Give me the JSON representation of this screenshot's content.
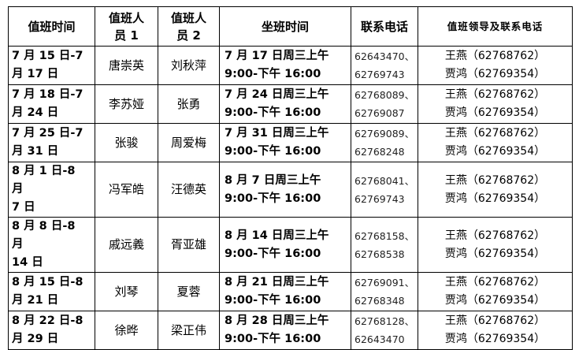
{
  "headers": [
    "值班时间",
    "值班人\n员 1",
    "值班人\n员 2",
    "坐班时间",
    "联系电话",
    "值班领导及联系电话"
  ],
  "rows": [
    {
      "period": "7 月 15 日-7\n月 17 日",
      "staff1": "唐崇英",
      "staff2": "刘秋萍",
      "office_time": "7 月 17 日周三上午\n9:00-下午 16:00",
      "phones": "62643470、\n62769743",
      "leaders": "王燕（62768762）\n贾鸿（62769354）"
    },
    {
      "period": "7 月 18 日-7\n月 24 日",
      "staff1": "李苏娅",
      "staff2": "张勇",
      "office_time": "7 月 24 日周三上午\n9:00-下午 16:00",
      "phones": "62768089、\n62769087",
      "leaders": "王燕（62768762）\n贾鸿（62769354）"
    },
    {
      "period": "7 月 25 日-7\n月 31 日",
      "staff1": "张骏",
      "staff2": "周爱梅",
      "office_time": "7 月 31 日周三上午\n9:00-下午 16:00",
      "phones": "62769089、\n62768248",
      "leaders": "王燕（62768762）\n贾鸿（62769354）"
    },
    {
      "period": "8 月 1 日-8 月\n7 日",
      "staff1": "冯军皓",
      "staff2": "汪德英",
      "office_time": "8 月 7 日周三上午\n9:00-下午 16:00",
      "phones": "62768041、\n62769743",
      "leaders": "王燕（62768762）\n贾鸿（62769354）"
    },
    {
      "period": "8 月 8 日-8 月\n14 日",
      "staff1": "戚远義",
      "staff2": "胥亚雄",
      "office_time": "8 月 14 日周三上午\n9:00-下午 16:00",
      "phones": "62768158、\n62768538",
      "leaders": "王燕（62768762）\n贾鸿（62769354）"
    },
    {
      "period": "8 月 15 日-8\n月 21 日",
      "staff1": "刘琴",
      "staff2": "夏蓉",
      "office_time": "8 月 21 日周三上午\n9:00-下午 16:00",
      "phones": "62769091、\n62768348",
      "leaders": "王燕（62768762）\n贾鸿（62769354）"
    },
    {
      "period": "8 月 22 日-8\n月 29 日",
      "staff1": "徐晔",
      "staff2": "梁正伟",
      "office_time": "8 月 28 日周三上午\n9:00-下午 16:00",
      "phones": "62768128、\n62643470",
      "leaders": "王燕（62768762）\n贾鸿（62769354）"
    }
  ]
}
